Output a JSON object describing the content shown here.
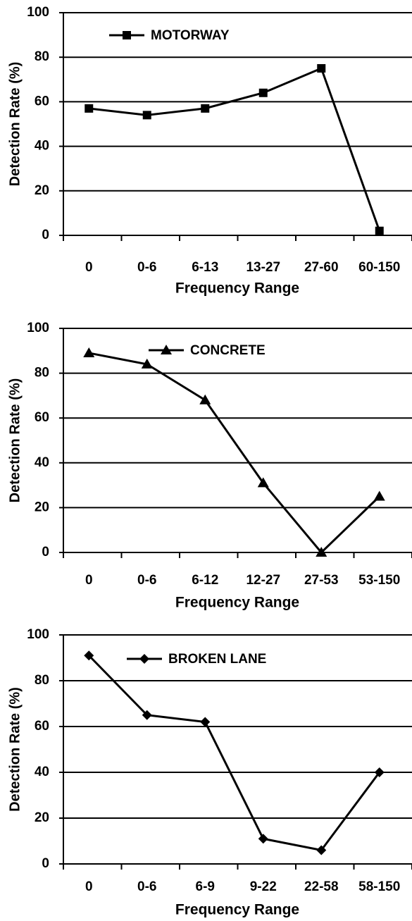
{
  "chart_data": [
    {
      "type": "line",
      "x_label": "Frequency Range",
      "y_label": "Detection Rate (%)",
      "categories": [
        "0",
        "0-6",
        "6-13",
        "13-27",
        "27-60",
        "60-150"
      ],
      "series": [
        {
          "name": "MOTORWAY",
          "color": "#000000",
          "marker": "square",
          "values": [
            57,
            54,
            57,
            64,
            75,
            2
          ]
        }
      ],
      "ylim": [
        0,
        100
      ],
      "yticks": [
        0,
        20,
        40,
        60,
        80,
        100
      ],
      "grid": true
    },
    {
      "type": "line",
      "x_label": "Frequency Range",
      "y_label": "Detection Rate (%)",
      "categories": [
        "0",
        "0-6",
        "6-12",
        "12-27",
        "27-53",
        "53-150"
      ],
      "series": [
        {
          "name": "CONCRETE",
          "color": "#000000",
          "marker": "triangle",
          "values": [
            89,
            84,
            68,
            31,
            0,
            25
          ]
        }
      ],
      "ylim": [
        0,
        100
      ],
      "yticks": [
        0,
        20,
        40,
        60,
        80,
        100
      ],
      "grid": true
    },
    {
      "type": "line",
      "x_label": "Frequency Range",
      "y_label": "Detection Rate (%)",
      "categories": [
        "0",
        "0-6",
        "6-9",
        "9-22",
        "22-58",
        "58-150"
      ],
      "series": [
        {
          "name": "BROKEN LANE",
          "color": "#000000",
          "marker": "diamond",
          "values": [
            91,
            65,
            62,
            11,
            6,
            40
          ]
        }
      ],
      "ylim": [
        0,
        100
      ],
      "yticks": [
        0,
        20,
        40,
        60,
        80,
        100
      ],
      "grid": true
    }
  ]
}
